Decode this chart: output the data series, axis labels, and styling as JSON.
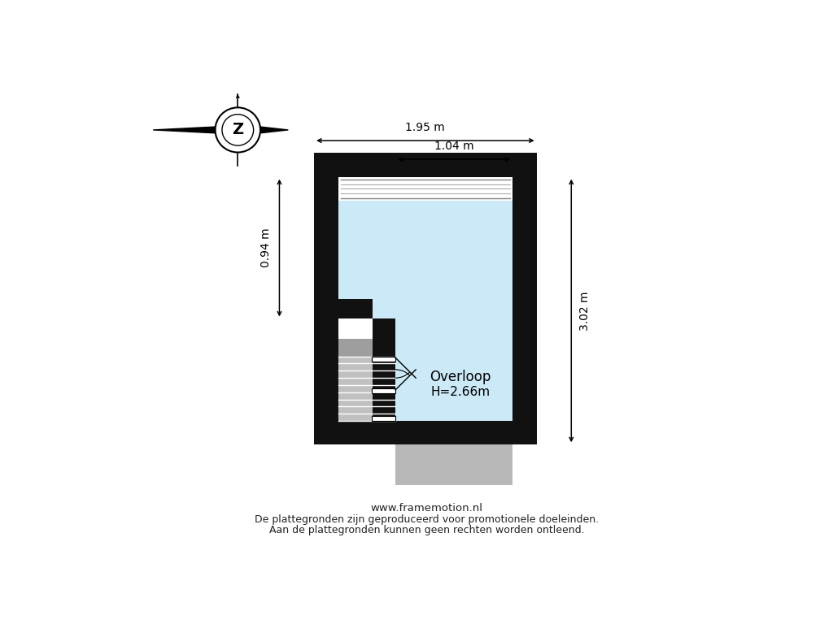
{
  "wall_color": "#111111",
  "room_color": "#cce9f7",
  "gray_stair_dark": "#9e9e9e",
  "gray_stair_light": "#c0c0c0",
  "gray_protrude": "#b8b8b8",
  "window_frame": "#cccccc",
  "footer_text1": "www.framemotion.nl",
  "footer_text2": "De plattegronden zijn geproduceerd voor promotionele doeleinden.",
  "footer_text3": "Aan de plattegronden kunnen geen rechten worden ontleend.",
  "room_label": "Overloop",
  "room_height_label": "H=2.66m",
  "dim_top": "1.95 m",
  "dim_top2": "1.04 m",
  "dim_left": "0.94 m",
  "dim_right": "3.02 m"
}
